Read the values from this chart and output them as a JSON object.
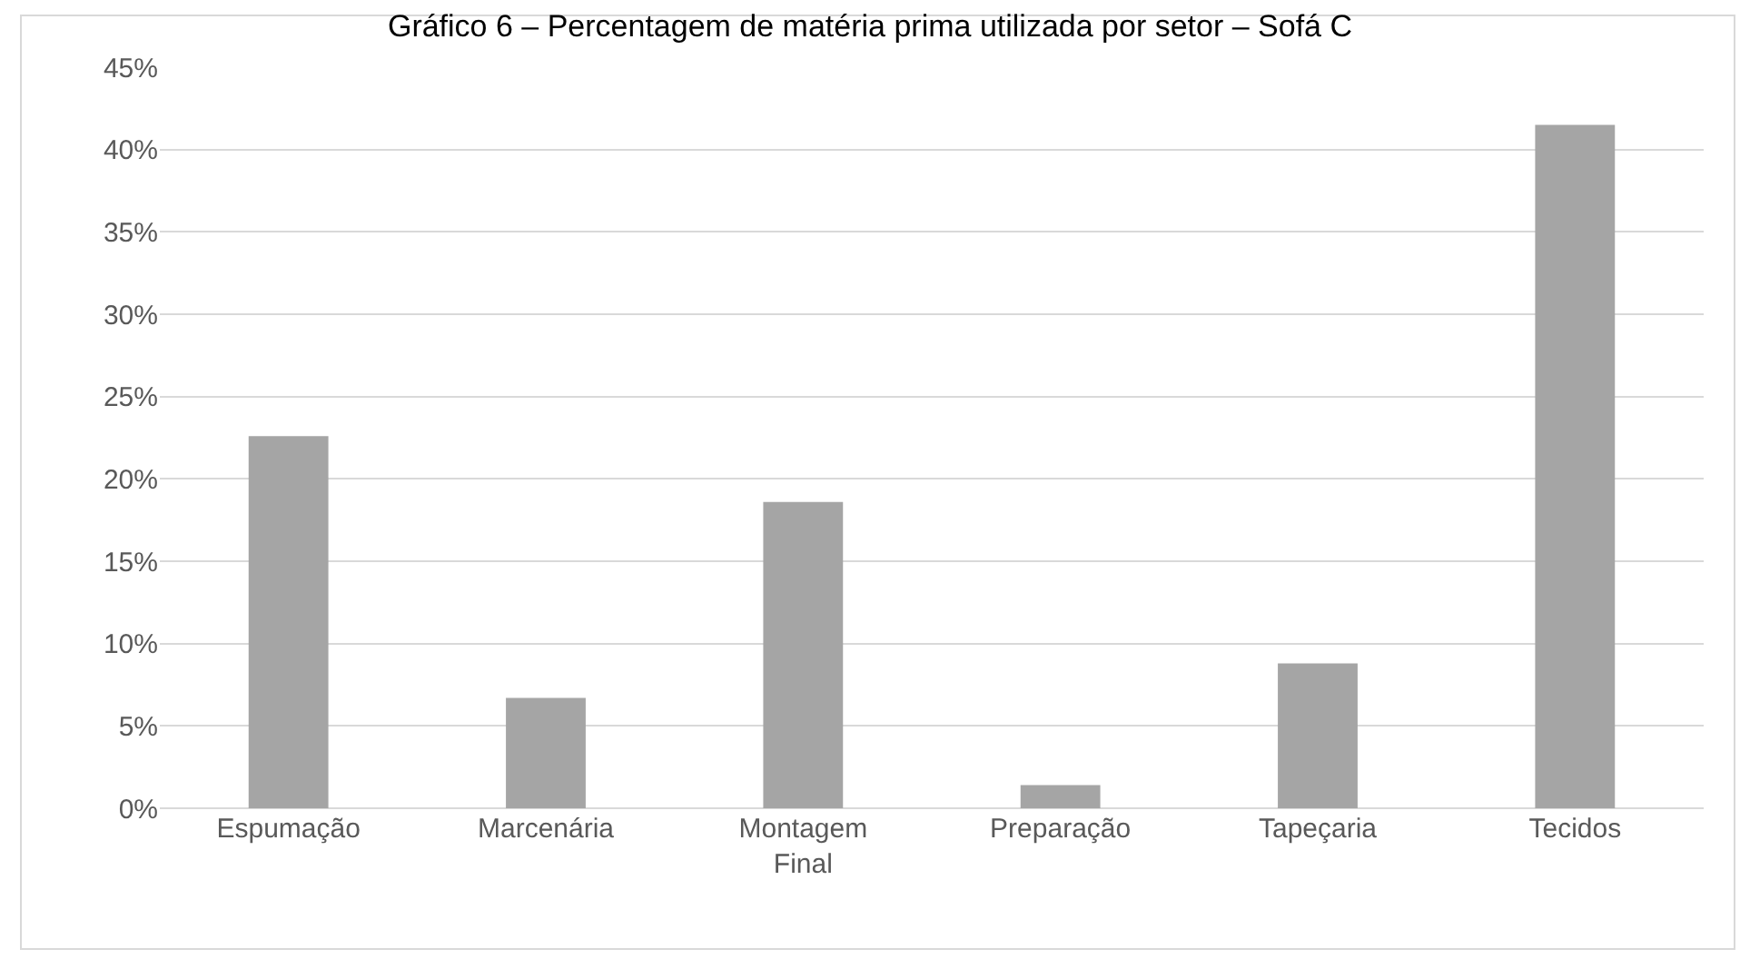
{
  "chart_data": {
    "type": "bar",
    "title": "Gráfico 6 – Percentagem de matéria prima utilizada por setor – Sofá C",
    "categories": [
      "Espumação",
      "Marcenária",
      "Montagem Final",
      "Preparação",
      "Tapeçaria",
      "Tecidos"
    ],
    "values": [
      22.6,
      6.7,
      18.6,
      1.4,
      8.8,
      41.5
    ],
    "color": "#a5a5a5",
    "ylim": [
      0,
      45
    ],
    "yticks": [
      {
        "value": 0,
        "label": "0%"
      },
      {
        "value": 5,
        "label": "5%"
      },
      {
        "value": 10,
        "label": "10%"
      },
      {
        "value": 15,
        "label": "15%"
      },
      {
        "value": 20,
        "label": "20%"
      },
      {
        "value": 25,
        "label": "25%"
      },
      {
        "value": 30,
        "label": "30%"
      },
      {
        "value": 35,
        "label": "35%"
      },
      {
        "value": 40,
        "label": "40%"
      },
      {
        "value": 45,
        "label": "45%"
      }
    ],
    "grid": "y"
  }
}
